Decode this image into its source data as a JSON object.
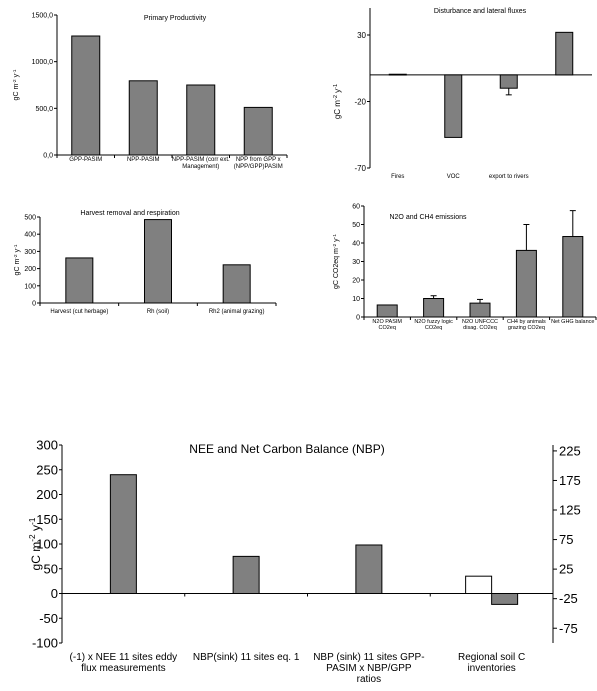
{
  "chart_data": [
    {
      "id": "c1",
      "type": "bar",
      "title": "Primary Productivity",
      "ylabel_main": "gC m",
      "ylabel_sup1": "-2",
      "ylabel_mid": " y",
      "ylabel_sup2": "-1",
      "ylim": [
        0,
        1500
      ],
      "yticks": [
        "1500,0",
        "1000,0",
        "500,0",
        "0,0"
      ],
      "ytick_values": [
        1500,
        1000,
        500,
        0
      ],
      "categories": [
        [
          "GPP-PASIM"
        ],
        [
          "NPP-PASIM"
        ],
        [
          "NPP-PASIM (corr ext.",
          "Management)"
        ],
        [
          "NPP from GPP x",
          "(NPP/GPP)PASIM"
        ]
      ],
      "values": [
        1275,
        795,
        750,
        510
      ],
      "bar_color": "#808080"
    },
    {
      "id": "c2",
      "type": "bar",
      "title": "Disturbance and lateral fluxes",
      "ylabel_main": "gC m",
      "ylabel_sup1": "-2",
      "ylabel_mid": " y",
      "ylabel_sup2": "-1",
      "ylim": [
        -70,
        30
      ],
      "yticks": [
        "30",
        "-20",
        "-70"
      ],
      "ytick_values": [
        30,
        -20,
        -70
      ],
      "categories": [
        [
          "Fires"
        ],
        [
          "VOC"
        ],
        [
          "export to rivers"
        ],
        [
          ""
        ]
      ],
      "values": [
        0.5,
        -47,
        -10,
        32
      ],
      "errors": [
        null,
        null,
        5,
        null
      ],
      "bar_color": "#808080"
    },
    {
      "id": "c3",
      "type": "bar",
      "title": "Harvest removal and respiration",
      "ylabel_main": "gC m",
      "ylabel_sup1": "-2",
      "ylabel_mid": " y",
      "ylabel_sup2": "-1",
      "ylim": [
        0,
        500
      ],
      "yticks": [
        "500",
        "400",
        "300",
        "200",
        "100",
        "0"
      ],
      "ytick_values": [
        500,
        400,
        300,
        200,
        100,
        0
      ],
      "categories": [
        [
          "Harvest (cut herbage)"
        ],
        [
          "Rh (soil)"
        ],
        [
          "Rh2 (animal grazing)"
        ]
      ],
      "values": [
        262,
        485,
        222
      ],
      "bar_color": "#808080"
    },
    {
      "id": "c4",
      "type": "bar",
      "title": "N2O and CH4 emissions",
      "ylabel_main": "gC CO2eq m",
      "ylabel_sup1": "-2",
      "ylabel_mid": " y",
      "ylabel_sup2": "-1",
      "ylim": [
        0,
        60
      ],
      "yticks": [
        "60",
        "50",
        "40",
        "30",
        "20",
        "10",
        "0"
      ],
      "ytick_values": [
        60,
        50,
        40,
        30,
        20,
        10,
        0
      ],
      "categories": [
        [
          "N2O PASIM",
          "CO2eq"
        ],
        [
          "N2O fuzzy logic",
          "CO2eq"
        ],
        [
          "N2O UNFCCC",
          "disag. CO2eq"
        ],
        [
          "CH4  by animals",
          "grazing CO2eq"
        ],
        [
          "Net GHG balance"
        ]
      ],
      "values": [
        6.5,
        10,
        7.5,
        36,
        43.5
      ],
      "errors": [
        null,
        1.5,
        2,
        14,
        14
      ],
      "bar_color": "#808080"
    },
    {
      "id": "c5",
      "type": "bar",
      "title": "NEE and Net Carbon Balance (NBP)",
      "ylabel_main": "gC m",
      "ylabel_sup1": "-2",
      "ylabel_mid": " y",
      "ylabel_sup2": "-1",
      "ylim": [
        -100,
        300
      ],
      "yticks": [
        "300",
        "250",
        "200",
        "150",
        "100",
        "50",
        "0",
        "-50",
        "-100"
      ],
      "ytick_values": [
        300,
        250,
        200,
        150,
        100,
        50,
        0,
        -50,
        -100
      ],
      "y2ticks": [
        "225",
        "175",
        "125",
        "75",
        "25",
        "-25",
        "-75"
      ],
      "y2tick_values": [
        225,
        175,
        125,
        75,
        25,
        -25,
        -75
      ],
      "y2lim": [
        -100,
        235
      ],
      "categories": [
        [
          "(-1) x NEE 11 sites eddy",
          "flux measurements"
        ],
        [
          "NBP(sink)  11 sites eq. 1"
        ],
        [
          "NBP (sink) 11 sites GPP-",
          "PASIM x NBP/GPP",
          "ratios"
        ],
        [
          "Regional soil C",
          "inventories"
        ]
      ],
      "series": [
        {
          "values": [
            null,
            null,
            null,
            35
          ],
          "color": "#ffffff"
        },
        {
          "values": [
            240,
            75,
            98,
            -22
          ],
          "color": "#808080"
        }
      ]
    }
  ]
}
